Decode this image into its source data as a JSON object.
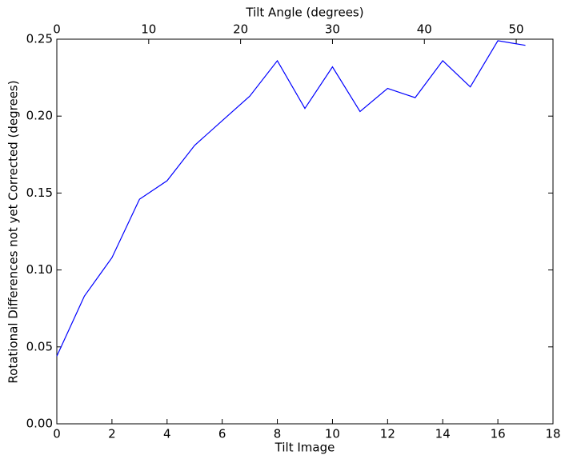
{
  "chart_data": {
    "type": "line",
    "xlabel": "Tilt Image",
    "ylabel": "Rotational Differences not yet Corrected (degrees)",
    "x2label": "Tilt Angle (degrees)",
    "x": [
      0,
      1,
      2,
      3,
      4,
      5,
      6,
      7,
      8,
      9,
      10,
      11,
      12,
      13,
      14,
      15,
      16,
      17
    ],
    "series": [
      {
        "name": "rotational differences",
        "color": "#0000ff",
        "values": [
          0.044,
          0.083,
          0.108,
          0.146,
          0.158,
          0.181,
          0.197,
          0.213,
          0.236,
          0.205,
          0.232,
          0.203,
          0.218,
          0.212,
          0.236,
          0.219,
          0.249,
          0.246
        ]
      }
    ],
    "xlim": [
      0,
      18
    ],
    "xticks": [
      0,
      2,
      4,
      6,
      8,
      10,
      12,
      14,
      16,
      18
    ],
    "x2lim": [
      0,
      54
    ],
    "x2ticks": [
      0,
      10,
      20,
      30,
      40,
      50
    ],
    "ylim": [
      0,
      0.25
    ],
    "yticks": [
      {
        "value": 0,
        "label": "0.00"
      },
      {
        "value": 0.05,
        "label": "0.05"
      },
      {
        "value": 0.1,
        "label": "0.10"
      },
      {
        "value": 0.15,
        "label": "0.15"
      },
      {
        "value": 0.2,
        "label": "0.20"
      },
      {
        "value": 0.25,
        "label": "0.25"
      }
    ]
  }
}
